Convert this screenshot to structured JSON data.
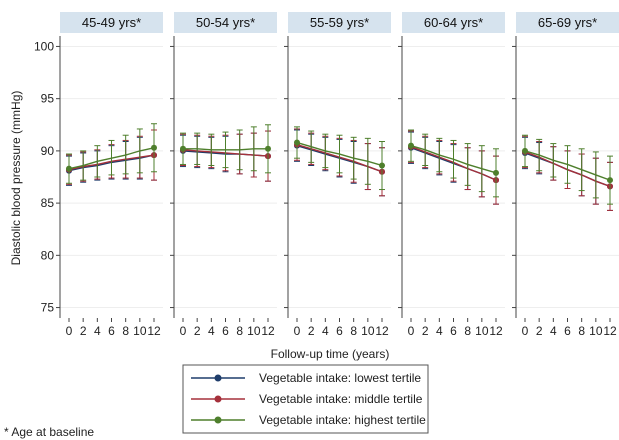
{
  "chart_data": {
    "type": "line",
    "ylabel": "Diastolic blood pressure (mmHg)",
    "xlabel": "Follow-up time (years)",
    "ylim": [
      74,
      101
    ],
    "yticks": [
      75,
      80,
      85,
      90,
      95,
      100
    ],
    "x": [
      0,
      2,
      4,
      6,
      8,
      10,
      12
    ],
    "xticklabels": [
      "0",
      "2",
      "4",
      "6",
      "8",
      "10",
      "12"
    ],
    "colors": {
      "lowest": "#1f3d6b",
      "middle": "#a5303b",
      "highest": "#4e7f2c",
      "panel_header": "#d6e3ee"
    },
    "panels": [
      {
        "title": "45-49 yrs*",
        "series": [
          {
            "name": "Vegetable intake: lowest tertile",
            "key": "lowest",
            "values": [
              88.1,
              88.4,
              88.6,
              88.9,
              89.1,
              89.3,
              89.6
            ],
            "lower": [
              86.7,
              87.0,
              87.2,
              87.3,
              87.3,
              87.3,
              87.2
            ],
            "upper": [
              89.5,
              89.8,
              90.0,
              90.5,
              90.9,
              91.3,
              92.0
            ]
          },
          {
            "name": "Vegetable intake: middle tertile",
            "key": "middle",
            "values": [
              88.2,
              88.5,
              88.7,
              89.0,
              89.2,
              89.4,
              89.6
            ],
            "lower": [
              86.8,
              87.1,
              87.3,
              87.4,
              87.4,
              87.4,
              87.2
            ],
            "upper": [
              89.6,
              89.9,
              90.1,
              90.6,
              91.0,
              91.4,
              92.0
            ]
          },
          {
            "name": "Vegetable intake: highest tertile",
            "key": "highest",
            "values": [
              88.3,
              88.6,
              89.0,
              89.3,
              89.6,
              90.0,
              90.3
            ],
            "lower": [
              86.9,
              87.2,
              87.5,
              87.7,
              87.8,
              87.9,
              88.0
            ],
            "upper": [
              89.7,
              90.0,
              90.5,
              91.0,
              91.5,
              92.1,
              92.6
            ]
          }
        ]
      },
      {
        "title": "50-54 yrs*",
        "series": [
          {
            "name": "Vegetable intake: lowest tertile",
            "key": "lowest",
            "values": [
              90.0,
              89.9,
              89.8,
              89.7,
              89.7,
              89.6,
              89.5
            ],
            "lower": [
              88.5,
              88.4,
              88.3,
              88.0,
              87.8,
              87.5,
              87.1
            ],
            "upper": [
              91.5,
              91.4,
              91.3,
              91.4,
              91.6,
              91.7,
              91.9
            ]
          },
          {
            "name": "Vegetable intake: middle tertile",
            "key": "middle",
            "values": [
              90.1,
              90.0,
              89.9,
              89.8,
              89.7,
              89.6,
              89.5
            ],
            "lower": [
              88.6,
              88.5,
              88.4,
              88.1,
              87.8,
              87.5,
              87.1
            ],
            "upper": [
              91.6,
              91.5,
              91.4,
              91.5,
              91.6,
              91.7,
              91.9
            ]
          },
          {
            "name": "Vegetable intake: highest tertile",
            "key": "highest",
            "values": [
              90.2,
              90.2,
              90.1,
              90.1,
              90.1,
              90.2,
              90.2
            ],
            "lower": [
              88.7,
              88.7,
              88.6,
              88.4,
              88.2,
              88.1,
              87.9
            ],
            "upper": [
              91.7,
              91.7,
              91.6,
              91.8,
              92.0,
              92.3,
              92.5
            ]
          }
        ]
      },
      {
        "title": "55-59 yrs*",
        "series": [
          {
            "name": "Vegetable intake: lowest tertile",
            "key": "lowest",
            "values": [
              90.5,
              90.1,
              89.7,
              89.3,
              88.9,
              88.5,
              88.0
            ],
            "lower": [
              89.0,
              88.6,
              88.1,
              87.5,
              86.9,
              86.3,
              85.7
            ],
            "upper": [
              92.0,
              91.6,
              91.3,
              91.1,
              90.9,
              90.7,
              90.3
            ]
          },
          {
            "name": "Vegetable intake: middle tertile",
            "key": "middle",
            "values": [
              90.6,
              90.2,
              89.8,
              89.4,
              89.0,
              88.5,
              88.0
            ],
            "lower": [
              89.1,
              88.7,
              88.2,
              87.6,
              87.0,
              86.3,
              85.7
            ],
            "upper": [
              92.1,
              91.7,
              91.4,
              91.2,
              91.0,
              90.7,
              90.3
            ]
          },
          {
            "name": "Vegetable intake: highest tertile",
            "key": "highest",
            "values": [
              90.8,
              90.4,
              90.0,
              89.7,
              89.3,
              89.0,
              88.6
            ],
            "lower": [
              89.3,
              88.9,
              88.4,
              87.9,
              87.3,
              86.8,
              86.3
            ],
            "upper": [
              92.3,
              91.9,
              91.6,
              91.5,
              91.3,
              91.2,
              90.9
            ]
          }
        ]
      },
      {
        "title": "60-64 yrs*",
        "series": [
          {
            "name": "Vegetable intake: lowest tertile",
            "key": "lowest",
            "values": [
              90.3,
              89.8,
              89.3,
              88.8,
              88.3,
              87.8,
              87.2
            ],
            "lower": [
              88.8,
              88.3,
              87.7,
              87.0,
              86.3,
              85.6,
              84.9
            ],
            "upper": [
              91.8,
              91.3,
              90.9,
              90.6,
              90.3,
              90.0,
              89.5
            ]
          },
          {
            "name": "Vegetable intake: middle tertile",
            "key": "middle",
            "values": [
              90.4,
              89.9,
              89.4,
              88.9,
              88.3,
              87.8,
              87.2
            ],
            "lower": [
              88.9,
              88.4,
              87.8,
              87.1,
              86.3,
              85.6,
              84.9
            ],
            "upper": [
              91.9,
              91.4,
              91.0,
              90.7,
              90.3,
              90.0,
              89.5
            ]
          },
          {
            "name": "Vegetable intake: highest tertile",
            "key": "highest",
            "values": [
              90.5,
              90.1,
              89.6,
              89.2,
              88.7,
              88.3,
              87.9
            ],
            "lower": [
              89.0,
              88.6,
              88.0,
              87.4,
              86.7,
              86.1,
              85.6
            ],
            "upper": [
              92.0,
              91.6,
              91.2,
              91.0,
              90.7,
              90.5,
              90.2
            ]
          }
        ]
      },
      {
        "title": "65-69 yrs*",
        "series": [
          {
            "name": "Vegetable intake: lowest tertile",
            "key": "lowest",
            "values": [
              89.8,
              89.3,
              88.8,
              88.2,
              87.7,
              87.1,
              86.6
            ],
            "lower": [
              88.3,
              87.8,
              87.2,
              86.4,
              85.7,
              84.9,
              84.3
            ],
            "upper": [
              91.3,
              90.8,
              90.4,
              90.0,
              89.7,
              89.3,
              88.9
            ]
          },
          {
            "name": "Vegetable intake: middle tertile",
            "key": "middle",
            "values": [
              89.9,
              89.4,
              88.8,
              88.2,
              87.7,
              87.1,
              86.6
            ],
            "lower": [
              88.4,
              87.9,
              87.2,
              86.4,
              85.7,
              84.9,
              84.3
            ],
            "upper": [
              91.4,
              90.9,
              90.4,
              90.0,
              89.7,
              89.3,
              88.9
            ]
          },
          {
            "name": "Vegetable intake: highest tertile",
            "key": "highest",
            "values": [
              90.0,
              89.6,
              89.1,
              88.7,
              88.2,
              87.7,
              87.2
            ],
            "lower": [
              88.5,
              88.1,
              87.5,
              86.9,
              86.2,
              85.5,
              84.9
            ],
            "upper": [
              91.5,
              91.1,
              90.7,
              90.5,
              90.2,
              89.9,
              89.5
            ]
          }
        ]
      }
    ],
    "legend": {
      "placement": "bottom",
      "entries": [
        {
          "key": "lowest",
          "label": "Vegetable intake: lowest tertile"
        },
        {
          "key": "middle",
          "label": "Vegetable intake: middle tertile"
        },
        {
          "key": "highest",
          "label": "Vegetable intake: highest tertile"
        }
      ]
    },
    "footnote": "* Age at baseline"
  }
}
